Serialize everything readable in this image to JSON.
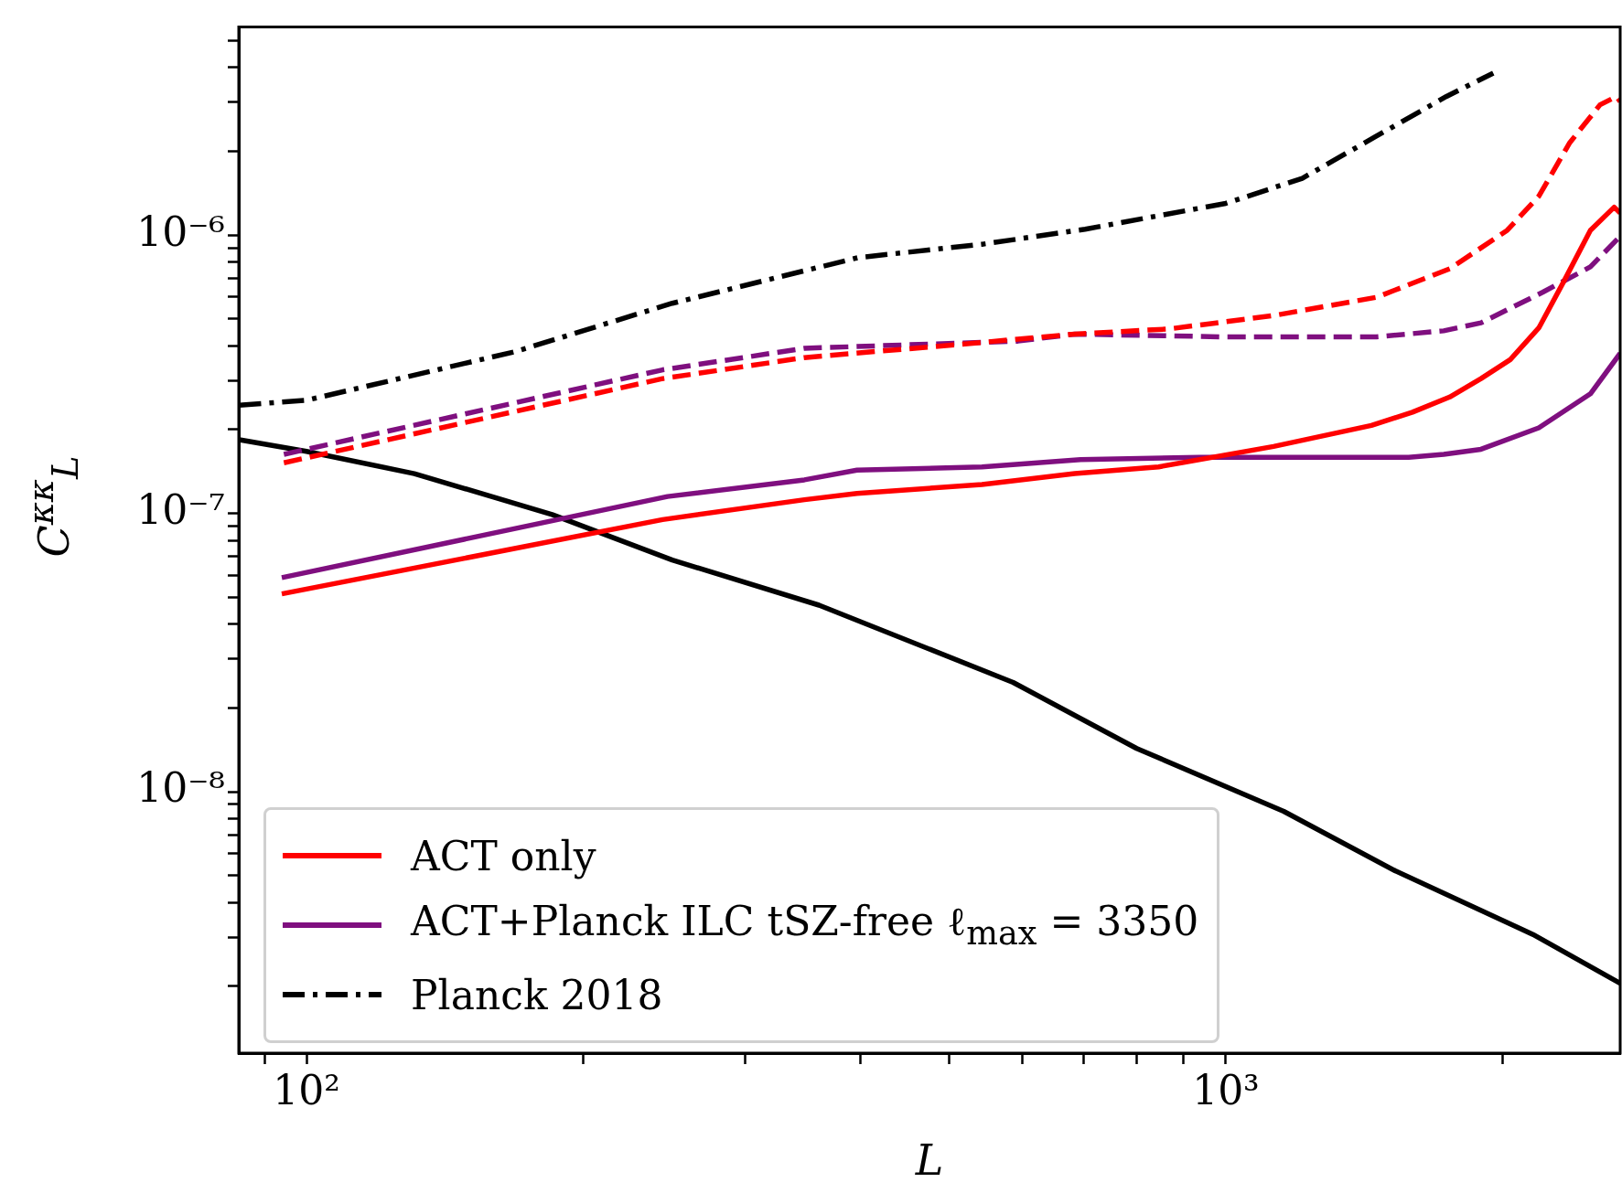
{
  "chart_data": {
    "type": "line",
    "xlabel": "L",
    "ylabel": "C$^{κκ}$$_{L}$",
    "log": "xy",
    "legend": "bottom left",
    "xlim": [
      84.4,
      2685
    ],
    "ylim": [
      1.15e-09,
      5.6e-06
    ],
    "xticks": [
      {
        "value": 90,
        "label": null
      },
      {
        "value": 100,
        "label": "10²"
      },
      {
        "value": 200,
        "label": null
      },
      {
        "value": 300,
        "label": null
      },
      {
        "value": 400,
        "label": null
      },
      {
        "value": 500,
        "label": null
      },
      {
        "value": 600,
        "label": null
      },
      {
        "value": 700,
        "label": null
      },
      {
        "value": 800,
        "label": null
      },
      {
        "value": 900,
        "label": null
      },
      {
        "value": 1000,
        "label": "10³"
      },
      {
        "value": 2000,
        "label": null
      }
    ],
    "yticks": [
      {
        "value": 2e-09,
        "label": null
      },
      {
        "value": 3e-09,
        "label": null
      },
      {
        "value": 4e-09,
        "label": null
      },
      {
        "value": 5e-09,
        "label": null
      },
      {
        "value": 6e-09,
        "label": null
      },
      {
        "value": 7e-09,
        "label": null
      },
      {
        "value": 8e-09,
        "label": null
      },
      {
        "value": 9e-09,
        "label": null
      },
      {
        "value": 1e-08,
        "label": "10⁻⁸"
      },
      {
        "value": 2e-08,
        "label": null
      },
      {
        "value": 3e-08,
        "label": null
      },
      {
        "value": 4e-08,
        "label": null
      },
      {
        "value": 5e-08,
        "label": null
      },
      {
        "value": 6e-08,
        "label": null
      },
      {
        "value": 7e-08,
        "label": null
      },
      {
        "value": 8e-08,
        "label": null
      },
      {
        "value": 9e-08,
        "label": null
      },
      {
        "value": 1e-07,
        "label": "10⁻⁷"
      },
      {
        "value": 2e-07,
        "label": null
      },
      {
        "value": 3e-07,
        "label": null
      },
      {
        "value": 4e-07,
        "label": null
      },
      {
        "value": 5e-07,
        "label": null
      },
      {
        "value": 6e-07,
        "label": null
      },
      {
        "value": 7e-07,
        "label": null
      },
      {
        "value": 8e-07,
        "label": null
      },
      {
        "value": 9e-07,
        "label": null
      },
      {
        "value": 1e-06,
        "label": "10⁻⁶"
      },
      {
        "value": 2e-06,
        "label": null
      },
      {
        "value": 3e-06,
        "label": null
      },
      {
        "value": 4e-06,
        "label": null
      },
      {
        "value": 5e-06,
        "label": null
      }
    ],
    "series": [
      {
        "name": "ACT only",
        "color": "#ff0000",
        "line_style": "solid",
        "x": [
          94,
          244,
          348,
          397,
          543,
          685,
          845,
          1127,
          1440,
          1596,
          1752,
          1895,
          2039,
          2190,
          2330,
          2492,
          2645,
          2685
        ],
        "values": [
          5.14e-08,
          9.5e-08,
          1.12e-07,
          1.18e-07,
          1.27e-07,
          1.39e-07,
          1.47e-07,
          1.74e-07,
          2.07e-07,
          2.31e-07,
          2.62e-07,
          3.05e-07,
          3.57e-07,
          4.64e-07,
          6.79e-07,
          1.04e-06,
          1.26e-06,
          1.2e-06
        ]
      },
      {
        "name": "ACT+Planck ILC tSZ-free ℓ$_{max}$ = 3350",
        "color": "#7f0f7f",
        "line_style": "solid",
        "x": [
          94,
          247,
          348,
          397,
          543,
          695,
          937,
          1581,
          1726,
          1895,
          2190,
          2492,
          2685
        ],
        "values": [
          5.88e-08,
          1.15e-07,
          1.32e-07,
          1.43e-07,
          1.47e-07,
          1.56e-07,
          1.59e-07,
          1.59e-07,
          1.63e-07,
          1.7e-07,
          2.03e-07,
          2.69e-07,
          3.76e-07
        ]
      },
      {
        "name": "Planck 2018",
        "color": "#000000",
        "line_style": "dashdot",
        "x": [
          84.5,
          100,
          169,
          250,
          398,
          543,
          703,
          1000,
          1211,
          1452,
          1738,
          1954
        ],
        "values": [
          2.45e-07,
          2.55e-07,
          3.82e-07,
          5.69e-07,
          8.3e-07,
          9.27e-07,
          1.05e-06,
          1.3e-06,
          1.6e-06,
          2.25e-06,
          3.15e-06,
          3.82e-06
        ]
      },
      {
        "color": "#ff0000",
        "line_style": "dashed",
        "x": [
          94.5,
          244,
          348,
          514,
          685,
          867,
          1127,
          1459,
          1752,
          2023,
          2190,
          2367,
          2553,
          2661,
          2685
        ],
        "values": [
          1.52e-07,
          3.05e-07,
          3.63e-07,
          4.05e-07,
          4.41e-07,
          4.6e-07,
          5.14e-07,
          5.98e-07,
          7.57e-07,
          1.04e-06,
          1.38e-06,
          2.15e-06,
          2.94e-06,
          3.15e-06,
          3.02e-06
        ]
      },
      {
        "color": "#7f0f7f",
        "line_style": "dashed",
        "x": [
          94.5,
          244,
          348,
          594,
          685,
          987,
          1459,
          1726,
          1895,
          2213,
          2492,
          2685
        ],
        "values": [
          1.63e-07,
          3.28e-07,
          3.92e-07,
          4.16e-07,
          4.41e-07,
          4.31e-07,
          4.31e-07,
          4.53e-07,
          4.84e-07,
          6.24e-07,
          7.69e-07,
          9.9e-07
        ]
      },
      {
        "color": "#000000",
        "line_style": "solid",
        "x": [
          84.5,
          100,
          131,
          185,
          250,
          361,
          587,
          800,
          1156,
          1528,
          2158,
          2685
        ],
        "values": [
          1.84e-07,
          1.67e-07,
          1.39e-07,
          9.9e-08,
          6.8e-08,
          4.68e-08,
          2.47e-08,
          1.43e-08,
          8.5e-09,
          5.2e-09,
          3.07e-09,
          2.05e-09
        ]
      }
    ]
  }
}
